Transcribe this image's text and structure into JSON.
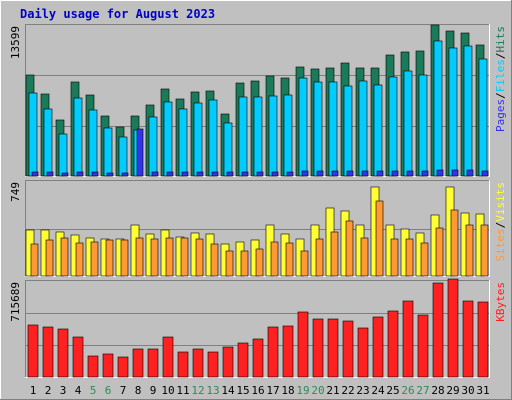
{
  "title": "Daily usage for August 2023",
  "colors": {
    "background": "#c0c0c0",
    "title": "#0000cc",
    "hits": "#1a7a5a",
    "files": "#00ccff",
    "pages": "#3333ee",
    "visits": "#ffff33",
    "sites": "#ff9933",
    "kbytes": "#ff2020",
    "weekend_label": "#2e8b57",
    "weekday_label": "#000000"
  },
  "chart_data": [
    {
      "type": "bar",
      "panel": "hits-files-pages",
      "ymax_label": "13599",
      "ylim": [
        0,
        13599
      ],
      "legend": [
        {
          "label": "Pages",
          "color_key": "pages"
        },
        {
          "label": "/",
          "color_key": "weekday_label"
        },
        {
          "label": "Files",
          "color_key": "files"
        },
        {
          "label": "/",
          "color_key": "weekday_label"
        },
        {
          "label": "Hits",
          "color_key": "hits"
        }
      ],
      "categories": [
        "1",
        "2",
        "3",
        "4",
        "5",
        "6",
        "7",
        "8",
        "9",
        "10",
        "11",
        "12",
        "13",
        "14",
        "15",
        "16",
        "17",
        "18",
        "19",
        "20",
        "21",
        "22",
        "23",
        "24",
        "25",
        "26",
        "27",
        "28",
        "29",
        "30",
        "31"
      ],
      "series": [
        {
          "name": "Hits",
          "values": [
            9100,
            7400,
            5000,
            8500,
            7300,
            5400,
            4400,
            5400,
            6400,
            7800,
            6900,
            7600,
            7700,
            5600,
            8400,
            8600,
            9000,
            8800,
            9800,
            9600,
            9700,
            10200,
            9700,
            9700,
            10900,
            11200,
            11300,
            13600,
            13100,
            12900,
            11800
          ]
        },
        {
          "name": "Files",
          "values": [
            7500,
            6000,
            3800,
            7000,
            5900,
            4300,
            3500,
            4100,
            5300,
            6700,
            6000,
            6600,
            6800,
            4800,
            7100,
            7100,
            7200,
            7300,
            8800,
            8500,
            8500,
            8100,
            8600,
            8200,
            8900,
            9500,
            9100,
            12200,
            11500,
            11700,
            10500
          ]
        },
        {
          "name": "Pages",
          "values": [
            400,
            350,
            300,
            400,
            380,
            300,
            300,
            4200,
            350,
            400,
            380,
            400,
            400,
            350,
            400,
            400,
            400,
            400,
            450,
            450,
            450,
            450,
            450,
            450,
            450,
            450,
            450,
            500,
            500,
            500,
            450
          ]
        }
      ]
    },
    {
      "type": "bar",
      "panel": "visits-sites",
      "ymax_label": "749",
      "ylim": [
        0,
        749
      ],
      "legend": [
        {
          "label": "Sites",
          "color_key": "sites"
        },
        {
          "label": "/",
          "color_key": "weekday_label"
        },
        {
          "label": "Visits",
          "color_key": "visits"
        }
      ],
      "categories": [
        "1",
        "2",
        "3",
        "4",
        "5",
        "6",
        "7",
        "8",
        "9",
        "10",
        "11",
        "12",
        "13",
        "14",
        "15",
        "16",
        "17",
        "18",
        "19",
        "20",
        "21",
        "22",
        "23",
        "24",
        "25",
        "26",
        "27",
        "28",
        "29",
        "30",
        "31"
      ],
      "series": [
        {
          "name": "Visits",
          "values": [
            360,
            360,
            350,
            320,
            300,
            290,
            290,
            400,
            330,
            360,
            310,
            340,
            330,
            250,
            270,
            280,
            400,
            330,
            290,
            400,
            540,
            510,
            400,
            700,
            400,
            370,
            340,
            480,
            700,
            500,
            490
          ]
        },
        {
          "name": "Sites",
          "values": [
            250,
            280,
            300,
            260,
            270,
            280,
            280,
            300,
            290,
            300,
            300,
            290,
            250,
            200,
            200,
            210,
            270,
            260,
            200,
            290,
            350,
            430,
            300,
            590,
            290,
            290,
            260,
            380,
            520,
            400,
            400
          ]
        }
      ]
    },
    {
      "type": "bar",
      "panel": "kbytes",
      "ymax_label": "715689",
      "ylim": [
        0,
        715689
      ],
      "legend": [
        {
          "label": "KBytes",
          "color_key": "kbytes"
        }
      ],
      "categories": [
        "1",
        "2",
        "3",
        "4",
        "5",
        "6",
        "7",
        "8",
        "9",
        "10",
        "11",
        "12",
        "13",
        "14",
        "15",
        "16",
        "17",
        "18",
        "19",
        "20",
        "21",
        "22",
        "23",
        "24",
        "25",
        "26",
        "27",
        "28",
        "29",
        "30",
        "31"
      ],
      "series": [
        {
          "name": "KBytes",
          "values": [
            390000,
            375000,
            355000,
            295000,
            155000,
            170000,
            150000,
            210000,
            210000,
            295000,
            190000,
            210000,
            190000,
            225000,
            250000,
            280000,
            375000,
            380000,
            485000,
            435000,
            435000,
            420000,
            365000,
            450000,
            495000,
            570000,
            465000,
            700000,
            730000,
            570000,
            560000
          ]
        }
      ]
    }
  ],
  "x_labels": [
    {
      "label": "1",
      "weekend": false
    },
    {
      "label": "2",
      "weekend": false
    },
    {
      "label": "3",
      "weekend": false
    },
    {
      "label": "4",
      "weekend": false
    },
    {
      "label": "5",
      "weekend": true
    },
    {
      "label": "6",
      "weekend": true
    },
    {
      "label": "7",
      "weekend": false
    },
    {
      "label": "8",
      "weekend": false
    },
    {
      "label": "9",
      "weekend": false
    },
    {
      "label": "10",
      "weekend": false
    },
    {
      "label": "11",
      "weekend": false
    },
    {
      "label": "12",
      "weekend": true
    },
    {
      "label": "13",
      "weekend": true
    },
    {
      "label": "14",
      "weekend": false
    },
    {
      "label": "15",
      "weekend": false
    },
    {
      "label": "16",
      "weekend": false
    },
    {
      "label": "17",
      "weekend": false
    },
    {
      "label": "18",
      "weekend": false
    },
    {
      "label": "19",
      "weekend": true
    },
    {
      "label": "20",
      "weekend": true
    },
    {
      "label": "21",
      "weekend": false
    },
    {
      "label": "22",
      "weekend": false
    },
    {
      "label": "23",
      "weekend": false
    },
    {
      "label": "24",
      "weekend": false
    },
    {
      "label": "25",
      "weekend": false
    },
    {
      "label": "26",
      "weekend": true
    },
    {
      "label": "27",
      "weekend": true
    },
    {
      "label": "28",
      "weekend": false
    },
    {
      "label": "29",
      "weekend": false
    },
    {
      "label": "30",
      "weekend": false
    },
    {
      "label": "31",
      "weekend": false
    }
  ]
}
